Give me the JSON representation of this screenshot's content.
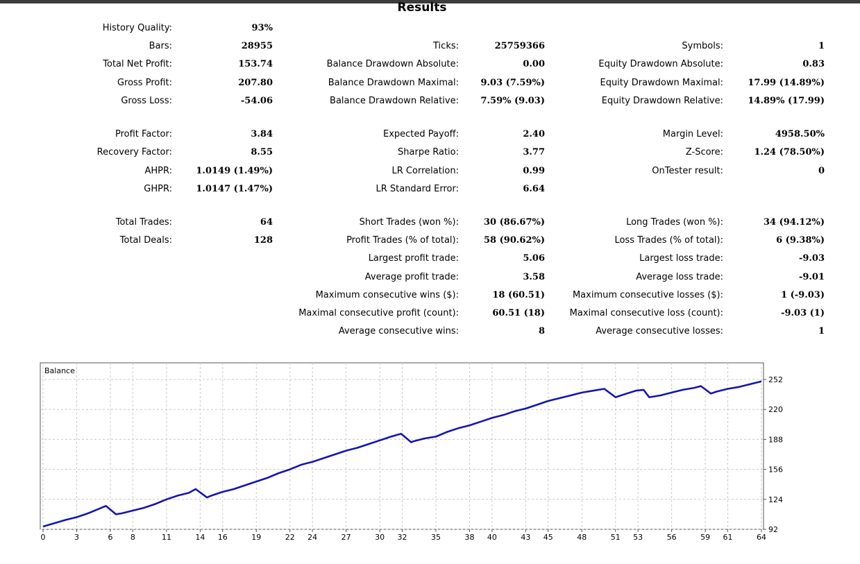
{
  "title": "Results",
  "stats": {
    "history_quality": {
      "label": "History Quality:",
      "value": "93%"
    },
    "bars": {
      "label": "Bars:",
      "value": "28955"
    },
    "ticks": {
      "label": "Ticks:",
      "value": "25759366"
    },
    "symbols": {
      "label": "Symbols:",
      "value": "1"
    },
    "total_net_profit": {
      "label": "Total Net Profit:",
      "value": "153.74"
    },
    "balance_dd_abs": {
      "label": "Balance Drawdown Absolute:",
      "value": "0.00"
    },
    "equity_dd_abs": {
      "label": "Equity Drawdown Absolute:",
      "value": "0.83"
    },
    "gross_profit": {
      "label": "Gross Profit:",
      "value": "207.80"
    },
    "balance_dd_max": {
      "label": "Balance Drawdown Maximal:",
      "value": "9.03 (7.59%)"
    },
    "equity_dd_max": {
      "label": "Equity Drawdown Maximal:",
      "value": "17.99 (14.89%)"
    },
    "gross_loss": {
      "label": "Gross Loss:",
      "value": "-54.06"
    },
    "balance_dd_rel": {
      "label": "Balance Drawdown Relative:",
      "value": "7.59% (9.03)"
    },
    "equity_dd_rel": {
      "label": "Equity Drawdown Relative:",
      "value": "14.89% (17.99)"
    },
    "profit_factor": {
      "label": "Profit Factor:",
      "value": "3.84"
    },
    "expected_payoff": {
      "label": "Expected Payoff:",
      "value": "2.40"
    },
    "margin_level": {
      "label": "Margin Level:",
      "value": "4958.50%"
    },
    "recovery_factor": {
      "label": "Recovery Factor:",
      "value": "8.55"
    },
    "sharpe_ratio": {
      "label": "Sharpe Ratio:",
      "value": "3.77"
    },
    "z_score": {
      "label": "Z-Score:",
      "value": "1.24 (78.50%)"
    },
    "ahpr": {
      "label": "AHPR:",
      "value": "1.0149 (1.49%)"
    },
    "lr_correlation": {
      "label": "LR Correlation:",
      "value": "0.99"
    },
    "ontester": {
      "label": "OnTester result:",
      "value": "0"
    },
    "ghpr": {
      "label": "GHPR:",
      "value": "1.0147 (1.47%)"
    },
    "lr_std_error": {
      "label": "LR Standard Error:",
      "value": "6.64"
    },
    "total_trades": {
      "label": "Total Trades:",
      "value": "64"
    },
    "short_trades": {
      "label": "Short Trades (won %):",
      "value": "30 (86.67%)"
    },
    "long_trades": {
      "label": "Long Trades (won %):",
      "value": "34 (94.12%)"
    },
    "total_deals": {
      "label": "Total Deals:",
      "value": "128"
    },
    "profit_trades": {
      "label": "Profit Trades (% of total):",
      "value": "58 (90.62%)"
    },
    "loss_trades": {
      "label": "Loss Trades (% of total):",
      "value": "6 (9.38%)"
    },
    "largest_profit": {
      "label": "Largest profit trade:",
      "value": "5.06"
    },
    "largest_loss": {
      "label": "Largest loss trade:",
      "value": "-9.03"
    },
    "average_profit": {
      "label": "Average profit trade:",
      "value": "3.58"
    },
    "average_loss": {
      "label": "Average loss trade:",
      "value": "-9.01"
    },
    "max_consec_wins": {
      "label": "Maximum consecutive wins ($):",
      "value": "18 (60.51)"
    },
    "max_consec_losses": {
      "label": "Maximum consecutive losses ($):",
      "value": "1 (-9.03)"
    },
    "maximal_consec_profit": {
      "label": "Maximal consecutive profit (count):",
      "value": "60.51 (18)"
    },
    "maximal_consec_loss": {
      "label": "Maximal consecutive loss (count):",
      "value": "-9.03 (1)"
    },
    "avg_consec_wins": {
      "label": "Average consecutive wins:",
      "value": "8"
    },
    "avg_consec_losses": {
      "label": "Average consecutive losses:",
      "value": "1"
    }
  },
  "chart_data": {
    "type": "line",
    "legend": "Balance",
    "line_color": "#1414b4",
    "grid": true,
    "xlim": [
      0,
      64
    ],
    "ylim": [
      92,
      252
    ],
    "x_ticks": [
      "0",
      "3",
      "6",
      "8",
      "11",
      "14",
      "16",
      "19",
      "22",
      "24",
      "27",
      "30",
      "32",
      "35",
      "38",
      "40",
      "43",
      "45",
      "48",
      "51",
      "53",
      "56",
      "59",
      "61",
      "64"
    ],
    "y_ticks": [
      "92",
      "124",
      "156",
      "188",
      "220",
      "252"
    ],
    "series": [
      {
        "name": "Balance",
        "x": [
          0,
          1,
          2,
          3,
          4,
          5,
          5.6,
          6.5,
          7,
          8,
          9,
          10,
          11,
          12,
          13,
          13.6,
          14.6,
          15,
          16,
          17,
          18,
          19,
          20,
          21,
          22,
          23,
          24,
          25,
          26,
          27,
          28,
          29,
          30,
          31,
          31.9,
          32.8,
          33,
          34,
          35,
          36,
          37,
          38,
          39,
          40,
          41,
          42,
          43,
          44,
          45,
          46,
          47,
          48,
          49,
          50,
          51,
          52,
          52.8,
          53.5,
          54,
          55,
          56,
          57,
          58,
          58.6,
          59.5,
          60,
          61,
          62,
          63,
          64
        ],
        "y": [
          95,
          98.5,
          102,
          105,
          109,
          114,
          117,
          108,
          109,
          112,
          115,
          119,
          124,
          128,
          131,
          135,
          126,
          128,
          132,
          135,
          139,
          143,
          147,
          152,
          156,
          161,
          164,
          168,
          172,
          176,
          179,
          183,
          187,
          191,
          194,
          185,
          186,
          189,
          191,
          196,
          200,
          203,
          207,
          211,
          214,
          218,
          221,
          225,
          229,
          232,
          235,
          238,
          240,
          242,
          233,
          237,
          240,
          241,
          233,
          235,
          238,
          241,
          243,
          245,
          237,
          239,
          242,
          244,
          247,
          250
        ]
      }
    ]
  }
}
